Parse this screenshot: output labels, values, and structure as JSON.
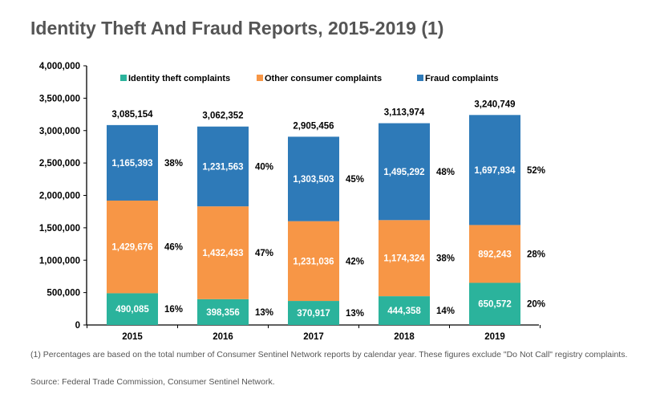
{
  "title": "Identity Theft And Fraud Reports, 2015-2019 (1)",
  "footnote": "(1) Percentages are based on the total number of Consumer Sentinel Network reports by calendar year. These figures exclude \"Do Not Call\" registry complaints.",
  "source": "Source: Federal Trade Commission, Consumer Sentinel Network.",
  "chart_data": {
    "type": "bar",
    "stacked": true,
    "categories": [
      "2015",
      "2016",
      "2017",
      "2018",
      "2019"
    ],
    "series": [
      {
        "name": "Identity theft complaints",
        "color": "#2bb39c",
        "values": [
          490085,
          398356,
          370917,
          444358,
          650572
        ],
        "labels": [
          "490,085",
          "398,356",
          "370,917",
          "444,358",
          "650,572"
        ],
        "percents": [
          "16%",
          "13%",
          "13%",
          "14%",
          "20%"
        ]
      },
      {
        "name": "Other consumer complaints",
        "color": "#f79646",
        "values": [
          1429676,
          1432433,
          1231036,
          1174324,
          892243
        ],
        "labels": [
          "1,429,676",
          "1,432,433",
          "1,231,036",
          "1,174,324",
          "892,243"
        ],
        "percents": [
          "46%",
          "47%",
          "42%",
          "38%",
          "28%"
        ]
      },
      {
        "name": "Fraud complaints",
        "color": "#2e7ab8",
        "values": [
          1165393,
          1231563,
          1303503,
          1495292,
          1697934
        ],
        "labels": [
          "1,165,393",
          "1,231,563",
          "1,303,503",
          "1,495,292",
          "1,697,934"
        ],
        "percents": [
          "38%",
          "40%",
          "45%",
          "48%",
          "52%"
        ]
      }
    ],
    "totals": [
      3085154,
      3062352,
      2905456,
      3113974,
      3240749
    ],
    "total_labels": [
      "3,085,154",
      "3,062,352",
      "2,905,456",
      "3,113,974",
      "3,240,749"
    ],
    "ylim": [
      0,
      4000000
    ],
    "yticks": [
      "0",
      "500,000",
      "1,000,000",
      "1,500,000",
      "2,000,000",
      "2,500,000",
      "3,000,000",
      "3,500,000",
      "4,000,000"
    ],
    "legend_position": "top",
    "grid": false,
    "xlabel": "",
    "ylabel": ""
  }
}
